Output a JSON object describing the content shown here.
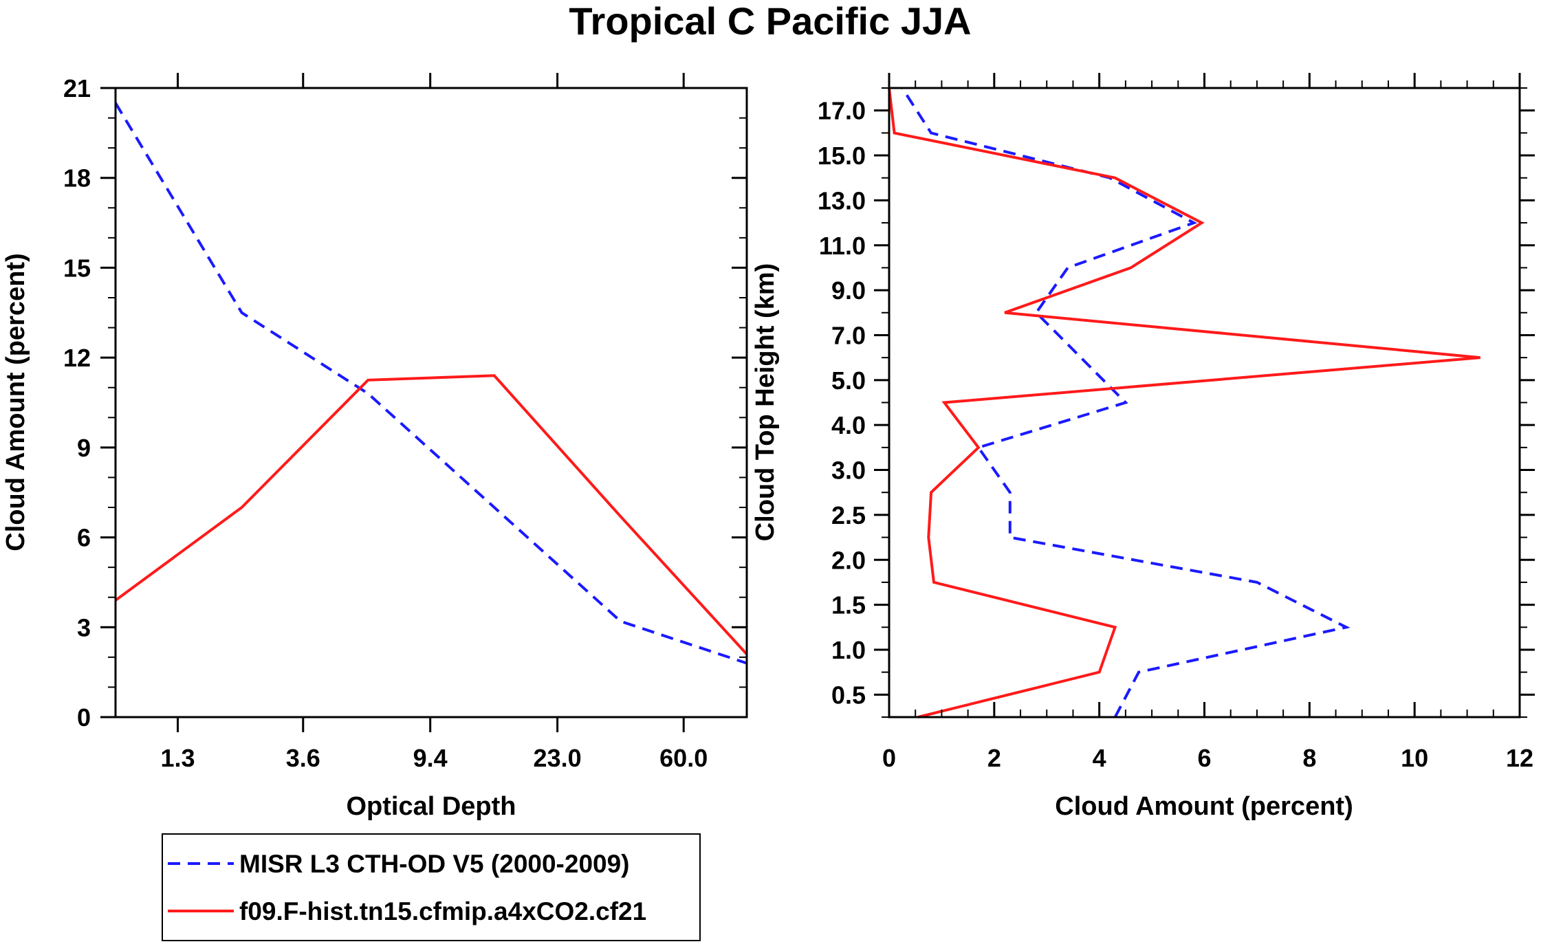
{
  "title": "Tropical C Pacific JJA",
  "colors": {
    "obs": "#1a1aff",
    "model": "#ff1a1a",
    "axis": "#000000"
  },
  "legend": [
    {
      "label": "MISR L3 CTH-OD V5 (2000-2009)",
      "color": "#1a1aff",
      "style": "dashed"
    },
    {
      "label": "f09.F-hist.tn15.cfmip.a4xCO2.cf21",
      "color": "#ff1a1a",
      "style": "solid"
    }
  ],
  "chart_data": [
    {
      "type": "line",
      "title": "Tropical C Pacific JJA",
      "xlabel": "Optical Depth",
      "ylabel": "Cloud Amount (percent)",
      "xlim": [
        0,
        7
      ],
      "ylim": [
        0,
        21
      ],
      "x_ticks": [
        {
          "pos": 0.69,
          "label": "1.3"
        },
        {
          "pos": 2.08,
          "label": "3.6"
        },
        {
          "pos": 3.49,
          "label": "9.4"
        },
        {
          "pos": 4.9,
          "label": "23.0"
        },
        {
          "pos": 6.3,
          "label": "60.0"
        }
      ],
      "y_ticks": [
        0,
        3,
        6,
        9,
        12,
        15,
        18,
        21
      ],
      "x": [
        0,
        1.4,
        2.8,
        4.2,
        5.6,
        7.0
      ],
      "series": [
        {
          "name": "MISR L3 CTH-OD V5 (2000-2009)",
          "style": "dashed",
          "color": "#1a1aff",
          "x": [
            0,
            1.4,
            2.8,
            4.2,
            5.6,
            7.0
          ],
          "values": [
            20.5,
            13.5,
            10.8,
            7.0,
            3.2,
            1.8
          ]
        },
        {
          "name": "f09.F-hist.tn15.cfmip.a4xCO2.cf21",
          "style": "solid",
          "color": "#ff1a1a",
          "x": [
            0,
            1.4,
            2.8,
            4.2,
            5.6,
            7.0
          ],
          "values": [
            3.9,
            7.0,
            11.25,
            11.4,
            6.7,
            2.1
          ]
        }
      ]
    },
    {
      "type": "line",
      "xlabel": "Cloud Amount (percent)",
      "ylabel": "Cloud Top Height (km)",
      "xlim": [
        0,
        12
      ],
      "ylim": [
        0,
        14
      ],
      "x_ticks": [
        0,
        2,
        4,
        6,
        8,
        10,
        12
      ],
      "y_ticks": [
        {
          "pos": 0.5,
          "label": "0.5"
        },
        {
          "pos": 1.5,
          "label": "1.0"
        },
        {
          "pos": 2.5,
          "label": "1.5"
        },
        {
          "pos": 3.5,
          "label": "2.0"
        },
        {
          "pos": 4.5,
          "label": "2.5"
        },
        {
          "pos": 5.5,
          "label": "3.0"
        },
        {
          "pos": 6.5,
          "label": "4.0"
        },
        {
          "pos": 7.5,
          "label": "5.0"
        },
        {
          "pos": 8.5,
          "label": "7.0"
        },
        {
          "pos": 9.5,
          "label": "9.0"
        },
        {
          "pos": 10.5,
          "label": "11.0"
        },
        {
          "pos": 11.5,
          "label": "13.0"
        },
        {
          "pos": 12.5,
          "label": "15.0"
        },
        {
          "pos": 13.5,
          "label": "17.0"
        }
      ],
      "series": [
        {
          "name": "MISR L3 CTH-OD V5 (2000-2009)",
          "style": "dashed",
          "color": "#1a1aff",
          "x": [
            4.3,
            4.75,
            8.7,
            7.0,
            2.3,
            2.3,
            1.7,
            4.5,
            2.8,
            3.4,
            5.8,
            4.2,
            0.8,
            0.25
          ],
          "height": [
            0.0,
            1.0,
            2.0,
            3.0,
            4.0,
            5.0,
            6.0,
            7.0,
            9.0,
            10.0,
            11.0,
            12.0,
            13.0,
            14.0
          ]
        },
        {
          "name": "f09.F-hist.tn15.cfmip.a4xCO2.cf21",
          "style": "solid",
          "color": "#ff1a1a",
          "x": [
            0.55,
            4.0,
            4.3,
            0.85,
            0.75,
            0.8,
            1.7,
            1.05,
            11.25,
            2.2,
            4.6,
            5.95,
            4.3,
            0.1,
            0.0
          ],
          "height": [
            0.0,
            1.0,
            2.0,
            3.0,
            4.0,
            5.0,
            6.0,
            7.0,
            8.0,
            9.0,
            10.0,
            11.0,
            12.0,
            13.0,
            14.0
          ]
        }
      ]
    }
  ]
}
